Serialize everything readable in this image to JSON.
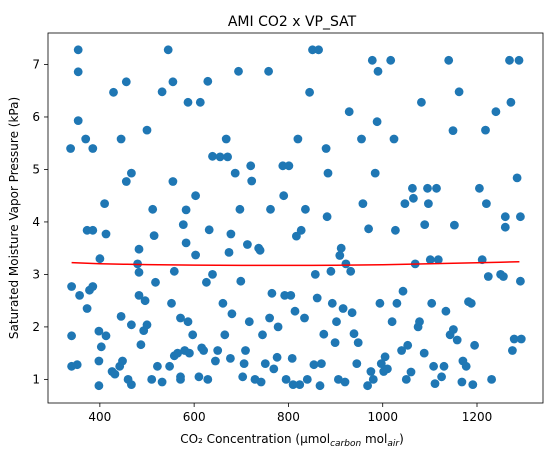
{
  "chart_data": {
    "type": "scatter",
    "title": "AMI CO2 x VP_SAT",
    "xlabel": "CO₂ Concentration (µmol",
    "xlabel_sub1": "carbon",
    "xlabel_mid": " mol",
    "xlabel_sub2": "air",
    "xlabel_end": ")",
    "ylabel": "Saturated Moisture Vapor Pressure (kPa)",
    "xlim": [
      290,
      1340
    ],
    "ylim": [
      0.55,
      7.6
    ],
    "xticks": [
      400,
      600,
      800,
      1000,
      1200
    ],
    "yticks": [
      1,
      2,
      3,
      4,
      5,
      6,
      7
    ],
    "grid": false,
    "colors": {
      "points": "#1f77b4",
      "fit": "#ff0000"
    },
    "series": [
      {
        "type": "scatter",
        "points": [
          [
            338,
            5.4
          ],
          [
            340,
            2.77
          ],
          [
            340,
            1.83
          ],
          [
            340,
            1.25
          ],
          [
            352,
            1.28
          ],
          [
            354,
            7.28
          ],
          [
            354,
            6.86
          ],
          [
            354,
            5.93
          ],
          [
            357,
            2.6
          ],
          [
            370,
            5.58
          ],
          [
            373,
            2.35
          ],
          [
            373,
            3.84
          ],
          [
            378,
            2.7
          ],
          [
            385,
            5.4
          ],
          [
            385,
            3.84
          ],
          [
            385,
            2.77
          ],
          [
            398,
            1.92
          ],
          [
            398,
            1.35
          ],
          [
            398,
            0.88
          ],
          [
            400,
            3.3
          ],
          [
            403,
            1.62
          ],
          [
            410,
            4.35
          ],
          [
            413,
            3.77
          ],
          [
            413,
            1.83
          ],
          [
            426,
            1.15
          ],
          [
            429,
            6.47
          ],
          [
            432,
            1.1
          ],
          [
            442,
            1.25
          ],
          [
            445,
            5.58
          ],
          [
            445,
            2.2
          ],
          [
            448,
            1.35
          ],
          [
            456,
            6.67
          ],
          [
            456,
            4.77
          ],
          [
            460,
            1.0
          ],
          [
            467,
            4.93
          ],
          [
            467,
            2.04
          ],
          [
            467,
            0.9
          ],
          [
            480,
            3.2
          ],
          [
            483,
            3.48
          ],
          [
            483,
            3.04
          ],
          [
            483,
            2.6
          ],
          [
            487,
            1.66
          ],
          [
            493,
            1.93
          ],
          [
            496,
            2.5
          ],
          [
            500,
            5.75
          ],
          [
            500,
            2.04
          ],
          [
            510,
            1.0
          ],
          [
            512,
            4.24
          ],
          [
            515,
            3.74
          ],
          [
            518,
            2.85
          ],
          [
            522,
            1.25
          ],
          [
            532,
            6.48
          ],
          [
            532,
            0.95
          ],
          [
            545,
            7.28
          ],
          [
            548,
            1.25
          ],
          [
            552,
            2.45
          ],
          [
            555,
            6.67
          ],
          [
            555,
            4.77
          ],
          [
            558,
            1.45
          ],
          [
            558,
            3.06
          ],
          [
            565,
            1.5
          ],
          [
            571,
            2.17
          ],
          [
            571,
            1.05
          ],
          [
            571,
            1.0
          ],
          [
            577,
            3.95
          ],
          [
            580,
            1.55
          ],
          [
            583,
            4.23
          ],
          [
            583,
            3.6
          ],
          [
            587,
            6.28
          ],
          [
            587,
            2.1
          ],
          [
            590,
            1.5
          ],
          [
            597,
            1.85
          ],
          [
            603,
            4.5
          ],
          [
            603,
            3.37
          ],
          [
            610,
            1.05
          ],
          [
            613,
            6.28
          ],
          [
            616,
            1.6
          ],
          [
            620,
            1.55
          ],
          [
            626,
            2.85
          ],
          [
            629,
            6.68
          ],
          [
            629,
            1.0
          ],
          [
            632,
            3.85
          ],
          [
            639,
            5.25
          ],
          [
            639,
            3.0
          ],
          [
            645,
            1.35
          ],
          [
            650,
            1.55
          ],
          [
            655,
            5.24
          ],
          [
            661,
            2.45
          ],
          [
            665,
            1.85
          ],
          [
            668,
            5.58
          ],
          [
            671,
            5.24
          ],
          [
            674,
            3.42
          ],
          [
            677,
            1.4
          ],
          [
            678,
            3.77
          ],
          [
            680,
            2.25
          ],
          [
            687,
            4.93
          ],
          [
            694,
            6.87
          ],
          [
            697,
            4.24
          ],
          [
            699,
            2.87
          ],
          [
            703,
            1.05
          ],
          [
            706,
            1.3
          ],
          [
            709,
            1.55
          ],
          [
            713,
            3.57
          ],
          [
            717,
            2.1
          ],
          [
            720,
            5.07
          ],
          [
            722,
            4.78
          ],
          [
            729,
            1.0
          ],
          [
            737,
            3.5
          ],
          [
            740,
            3.46
          ],
          [
            742,
            0.95
          ],
          [
            745,
            1.85
          ],
          [
            751,
            1.3
          ],
          [
            758,
            6.87
          ],
          [
            760,
            2.17
          ],
          [
            762,
            4.24
          ],
          [
            765,
            2.64
          ],
          [
            769,
            1.2
          ],
          [
            776,
            1.42
          ],
          [
            778,
            2.0
          ],
          [
            788,
            5.07
          ],
          [
            790,
            4.5
          ],
          [
            792,
            2.6
          ],
          [
            795,
            1.0
          ],
          [
            801,
            5.07
          ],
          [
            805,
            2.6
          ],
          [
            808,
            1.4
          ],
          [
            810,
            0.9
          ],
          [
            814,
            2.3
          ],
          [
            817,
            3.73
          ],
          [
            820,
            5.58
          ],
          [
            824,
            0.9
          ],
          [
            827,
            3.84
          ],
          [
            834,
            2.17
          ],
          [
            836,
            4.24
          ],
          [
            840,
            1.0
          ],
          [
            845,
            6.47
          ],
          [
            851,
            7.28
          ],
          [
            854,
            1.28
          ],
          [
            857,
            3.0
          ],
          [
            861,
            2.55
          ],
          [
            864,
            7.28
          ],
          [
            867,
            0.88
          ],
          [
            870,
            1.3
          ],
          [
            875,
            1.86
          ],
          [
            880,
            5.4
          ],
          [
            882,
            4.1
          ],
          [
            884,
            4.93
          ],
          [
            890,
            3.06
          ],
          [
            893,
            2.45
          ],
          [
            899,
            1.7
          ],
          [
            902,
            2.1
          ],
          [
            906,
            1.0
          ],
          [
            909,
            3.36
          ],
          [
            912,
            3.5
          ],
          [
            916,
            2.35
          ],
          [
            920,
            0.95
          ],
          [
            922,
            3.2
          ],
          [
            929,
            6.1
          ],
          [
            932,
            3.06
          ],
          [
            935,
            2.27
          ],
          [
            939,
            1.87
          ],
          [
            945,
            1.3
          ],
          [
            948,
            1.7
          ],
          [
            955,
            5.58
          ],
          [
            958,
            4.35
          ],
          [
            968,
            0.88
          ],
          [
            970,
            3.87
          ],
          [
            975,
            1.15
          ],
          [
            978,
            7.08
          ],
          [
            980,
            1.0
          ],
          [
            984,
            4.93
          ],
          [
            988,
            5.91
          ],
          [
            990,
            6.87
          ],
          [
            994,
            2.45
          ],
          [
            997,
            1.3
          ],
          [
            1002,
            1.15
          ],
          [
            1005,
            1.43
          ],
          [
            1010,
            1.2
          ],
          [
            1017,
            7.08
          ],
          [
            1020,
            2.1
          ],
          [
            1024,
            5.58
          ],
          [
            1027,
            3.84
          ],
          [
            1030,
            2.45
          ],
          [
            1040,
            1.55
          ],
          [
            1043,
            2.68
          ],
          [
            1047,
            4.35
          ],
          [
            1050,
            1.0
          ],
          [
            1053,
            1.65
          ],
          [
            1060,
            1.14
          ],
          [
            1063,
            4.64
          ],
          [
            1065,
            4.45
          ],
          [
            1069,
            3.2
          ],
          [
            1075,
            2.0
          ],
          [
            1078,
            2.1
          ],
          [
            1082,
            6.28
          ],
          [
            1088,
            1.5
          ],
          [
            1089,
            3.95
          ],
          [
            1095,
            4.64
          ],
          [
            1097,
            4.35
          ],
          [
            1101,
            3.28
          ],
          [
            1104,
            2.45
          ],
          [
            1108,
            1.25
          ],
          [
            1111,
            0.92
          ],
          [
            1114,
            4.64
          ],
          [
            1118,
            3.28
          ],
          [
            1125,
            1.05
          ],
          [
            1130,
            1.25
          ],
          [
            1134,
            2.3
          ],
          [
            1140,
            7.08
          ],
          [
            1143,
            1.85
          ],
          [
            1149,
            5.74
          ],
          [
            1150,
            1.95
          ],
          [
            1152,
            3.94
          ],
          [
            1158,
            1.75
          ],
          [
            1162,
            6.48
          ],
          [
            1168,
            0.95
          ],
          [
            1170,
            1.35
          ],
          [
            1177,
            1.25
          ],
          [
            1182,
            2.48
          ],
          [
            1188,
            2.45
          ],
          [
            1191,
            0.9
          ],
          [
            1195,
            1.65
          ],
          [
            1205,
            4.64
          ],
          [
            1211,
            3.28
          ],
          [
            1218,
            5.75
          ],
          [
            1220,
            4.35
          ],
          [
            1224,
            2.96
          ],
          [
            1231,
            1.0
          ],
          [
            1240,
            6.1
          ],
          [
            1250,
            3.0
          ],
          [
            1256,
            2.96
          ],
          [
            1260,
            4.1
          ],
          [
            1260,
            3.9
          ],
          [
            1269,
            7.08
          ],
          [
            1272,
            6.28
          ],
          [
            1275,
            1.55
          ],
          [
            1279,
            1.77
          ],
          [
            1285,
            4.84
          ],
          [
            1289,
            7.08
          ],
          [
            1292,
            4.1
          ],
          [
            1292,
            2.87
          ],
          [
            1294,
            1.77
          ]
        ]
      },
      {
        "type": "line",
        "points": [
          [
            340,
            3.225
          ],
          [
            400,
            3.205
          ],
          [
            450,
            3.195
          ],
          [
            500,
            3.188
          ],
          [
            550,
            3.182
          ],
          [
            600,
            3.177
          ],
          [
            650,
            3.174
          ],
          [
            700,
            3.172
          ],
          [
            750,
            3.171
          ],
          [
            800,
            3.171
          ],
          [
            850,
            3.172
          ],
          [
            900,
            3.175
          ],
          [
            950,
            3.179
          ],
          [
            1000,
            3.185
          ],
          [
            1050,
            3.193
          ],
          [
            1100,
            3.202
          ],
          [
            1150,
            3.212
          ],
          [
            1200,
            3.222
          ],
          [
            1250,
            3.232
          ],
          [
            1290,
            3.241
          ]
        ]
      }
    ]
  }
}
